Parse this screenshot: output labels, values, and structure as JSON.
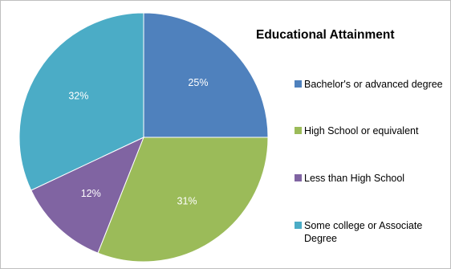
{
  "chart_data": {
    "type": "pie",
    "title": "Educational Attainment",
    "categories": [
      "Bachelor's or advanced degree",
      "High School or equivalent",
      "Less than High School",
      "Some college or Associate Degree"
    ],
    "values": [
      25,
      31,
      12,
      32
    ],
    "data_labels": [
      "25%",
      "31%",
      "12%",
      "32%"
    ],
    "colors": [
      "#4f81bd",
      "#9bbb59",
      "#8064a2",
      "#4bacc6"
    ],
    "legend_position": "right"
  }
}
